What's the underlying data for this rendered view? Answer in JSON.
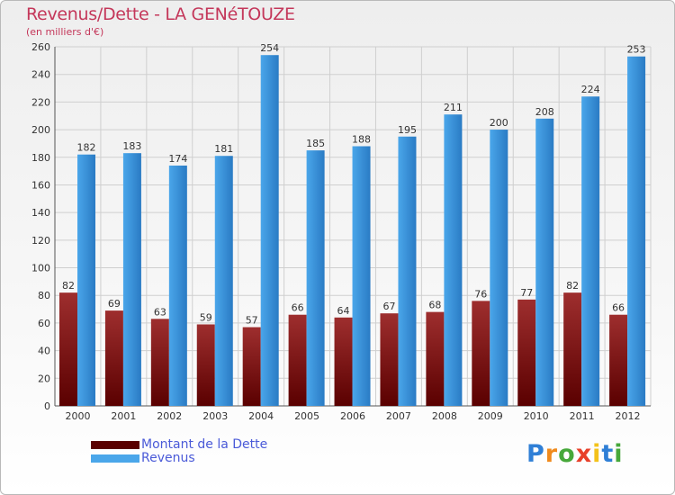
{
  "title": "Revenus/Dette - LA GENéTOUZE",
  "subtitle": "(en milliers d'€)",
  "logo": {
    "text": "Proxiti"
  },
  "colors": {
    "debt_dark": "#5a0000",
    "debt_light": "#9e2e2e",
    "revenue_dark": "#2a7bc4",
    "revenue_light": "#4aa6ea",
    "grid": "#cfcfcf",
    "title": "#c4375a",
    "legend_text": "#4a5ad8"
  },
  "chart_data": {
    "type": "bar",
    "title": "Revenus/Dette - LA GENéTOUZE",
    "ylabel": "(en milliers d'€)",
    "xlabel": "",
    "categories": [
      "2000",
      "2001",
      "2002",
      "2003",
      "2004",
      "2005",
      "2006",
      "2007",
      "2008",
      "2009",
      "2010",
      "2011",
      "2012"
    ],
    "series": [
      {
        "name": "Montant de la Dette",
        "values": [
          82,
          69,
          63,
          59,
          57,
          66,
          64,
          67,
          68,
          76,
          77,
          82,
          66
        ]
      },
      {
        "name": "Revenus",
        "values": [
          182,
          183,
          174,
          181,
          254,
          185,
          188,
          195,
          211,
          200,
          208,
          224,
          253
        ]
      }
    ],
    "ylim": [
      0,
      260
    ],
    "yticks": [
      0,
      20,
      40,
      60,
      80,
      100,
      120,
      140,
      160,
      180,
      200,
      220,
      240,
      260
    ],
    "grid": true,
    "legend": "bottom-left"
  }
}
